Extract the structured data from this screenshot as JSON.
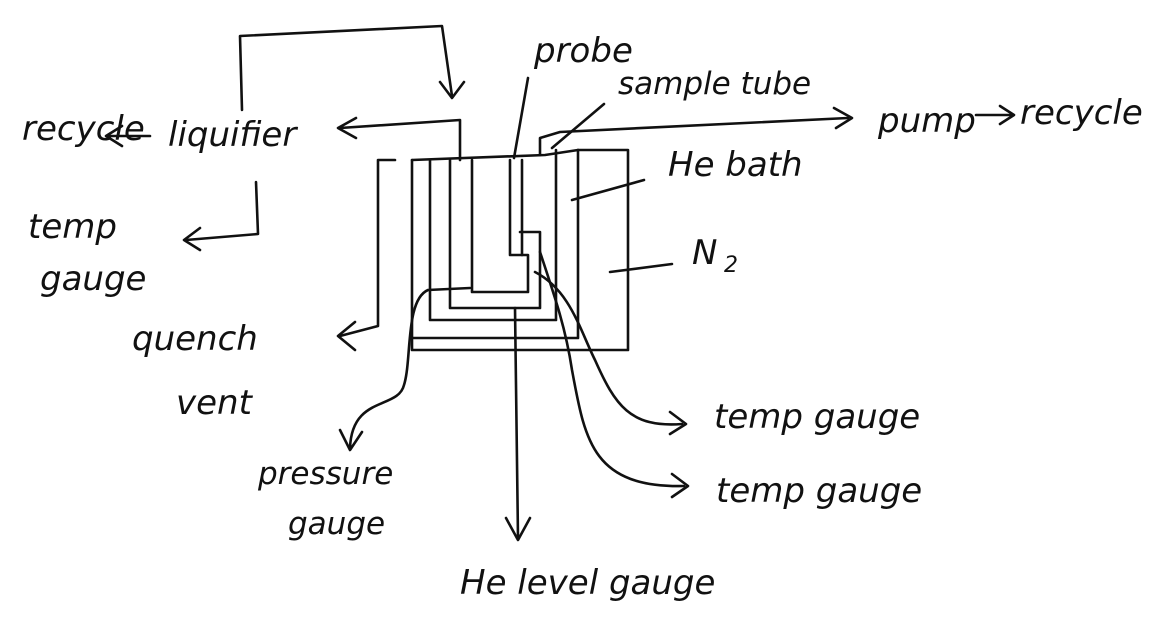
{
  "labels": {
    "recycle_left": "recycle",
    "liquifier": "liquifier",
    "temp_gauge_left_line1": "temp",
    "temp_gauge_left_line2": "gauge",
    "quench_vent_line1": "quench",
    "quench_vent_line2": "vent",
    "probe": "probe",
    "sample_tube": "sample tube",
    "pump_recycle": "pump",
    "recycle_right": "recycle",
    "he_bath": "He bath",
    "n2": "N",
    "n2_sub": "2",
    "temp_gauge_right_1": "temp gauge",
    "temp_gauge_right_2": "temp gauge",
    "pressure_gauge_line1": "pressure",
    "pressure_gauge_line2": "gauge",
    "he_level_gauge": "He level gauge"
  },
  "colors": {
    "ink": "#111111",
    "background": "#ffffff"
  }
}
